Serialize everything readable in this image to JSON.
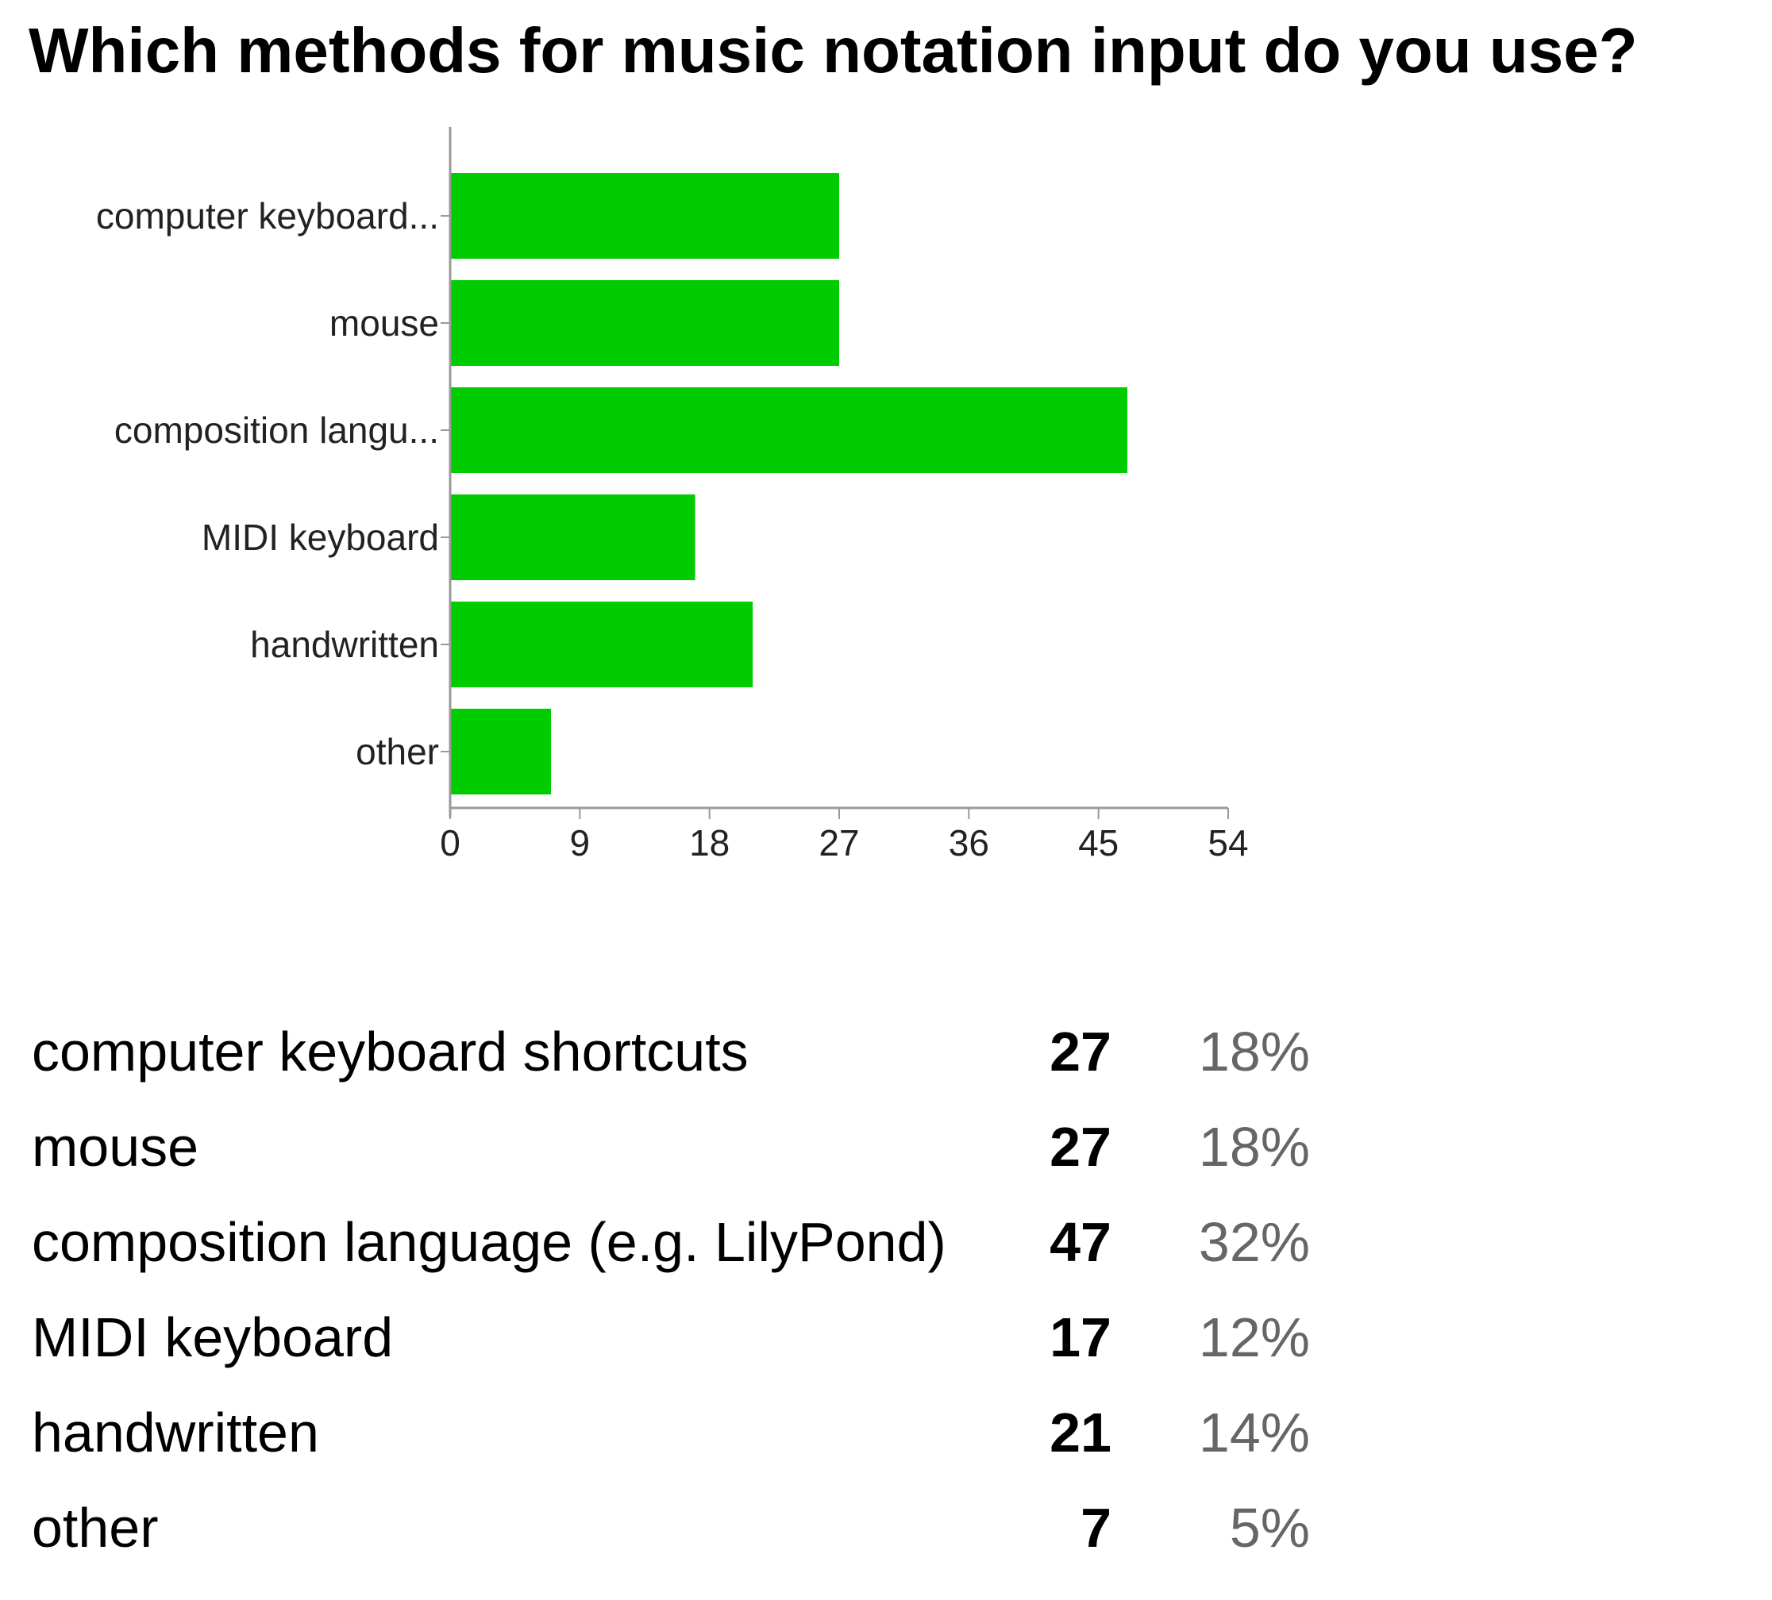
{
  "title": "Which methods for music notation input do you use?",
  "colors": {
    "bar": "#00cc00",
    "axis": "#999999",
    "percent_text": "#666666"
  },
  "chart_data": {
    "type": "bar",
    "orientation": "horizontal",
    "title": "",
    "xlabel": "",
    "ylabel": "",
    "categories": [
      "computer keyboard...",
      "mouse",
      "composition langu...",
      "MIDI keyboard",
      "handwritten",
      "other"
    ],
    "values": [
      27,
      27,
      47,
      17,
      21,
      7
    ],
    "xlim": [
      0,
      54
    ],
    "xticks": [
      0,
      9,
      18,
      27,
      36,
      45,
      54
    ],
    "grid": false,
    "legend": "none"
  },
  "summary": {
    "rows": [
      {
        "label": "computer keyboard shortcuts",
        "count": "27",
        "percent": "18%"
      },
      {
        "label": "mouse",
        "count": "27",
        "percent": "18%"
      },
      {
        "label": "composition language (e.g. LilyPond)",
        "count": "47",
        "percent": "32%"
      },
      {
        "label": "MIDI keyboard",
        "count": "17",
        "percent": "12%"
      },
      {
        "label": "handwritten",
        "count": "21",
        "percent": "14%"
      },
      {
        "label": "other",
        "count": "7",
        "percent": "5%"
      }
    ]
  }
}
